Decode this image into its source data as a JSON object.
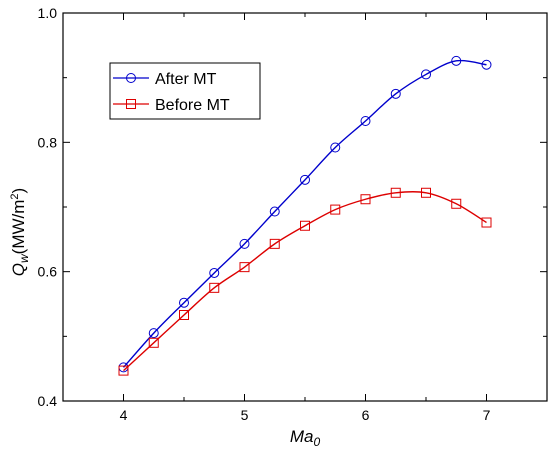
{
  "chart_data": {
    "type": "line",
    "xlabel": {
      "main": "Ma",
      "sub": "0"
    },
    "ylabel": {
      "main": "Q",
      "sub": "w",
      "unit_prefix": "(MW/m",
      "unit_sup": "2",
      "unit_suffix": ")"
    },
    "xlim": [
      3.5,
      7.5
    ],
    "ylim": [
      0.4,
      1.0
    ],
    "xticks": [
      4,
      5,
      6,
      7
    ],
    "yticks": [
      0.4,
      0.6,
      0.8,
      1.0
    ],
    "xtick_labels": [
      "4",
      "5",
      "6",
      "7"
    ],
    "ytick_labels": [
      "0.4",
      "0.6",
      "0.8",
      "1.0"
    ],
    "grid": false,
    "legend_position": "top-left",
    "series": [
      {
        "name": "After MT",
        "color": "#0000cc",
        "marker": "circle",
        "x": [
          4.0,
          4.25,
          4.5,
          4.75,
          5.0,
          5.25,
          5.5,
          5.75,
          6.0,
          6.25,
          6.5,
          6.75,
          7.0
        ],
        "y": [
          0.452,
          0.505,
          0.552,
          0.598,
          0.643,
          0.693,
          0.742,
          0.792,
          0.833,
          0.875,
          0.905,
          0.926,
          0.92
        ]
      },
      {
        "name": "Before MT",
        "color": "#dd0000",
        "marker": "square",
        "x": [
          4.0,
          4.25,
          4.5,
          4.75,
          5.0,
          5.25,
          5.5,
          5.75,
          6.0,
          6.25,
          6.5,
          6.75,
          7.0
        ],
        "y": [
          0.447,
          0.49,
          0.533,
          0.575,
          0.607,
          0.643,
          0.671,
          0.696,
          0.712,
          0.722,
          0.722,
          0.705,
          0.676
        ]
      }
    ]
  }
}
